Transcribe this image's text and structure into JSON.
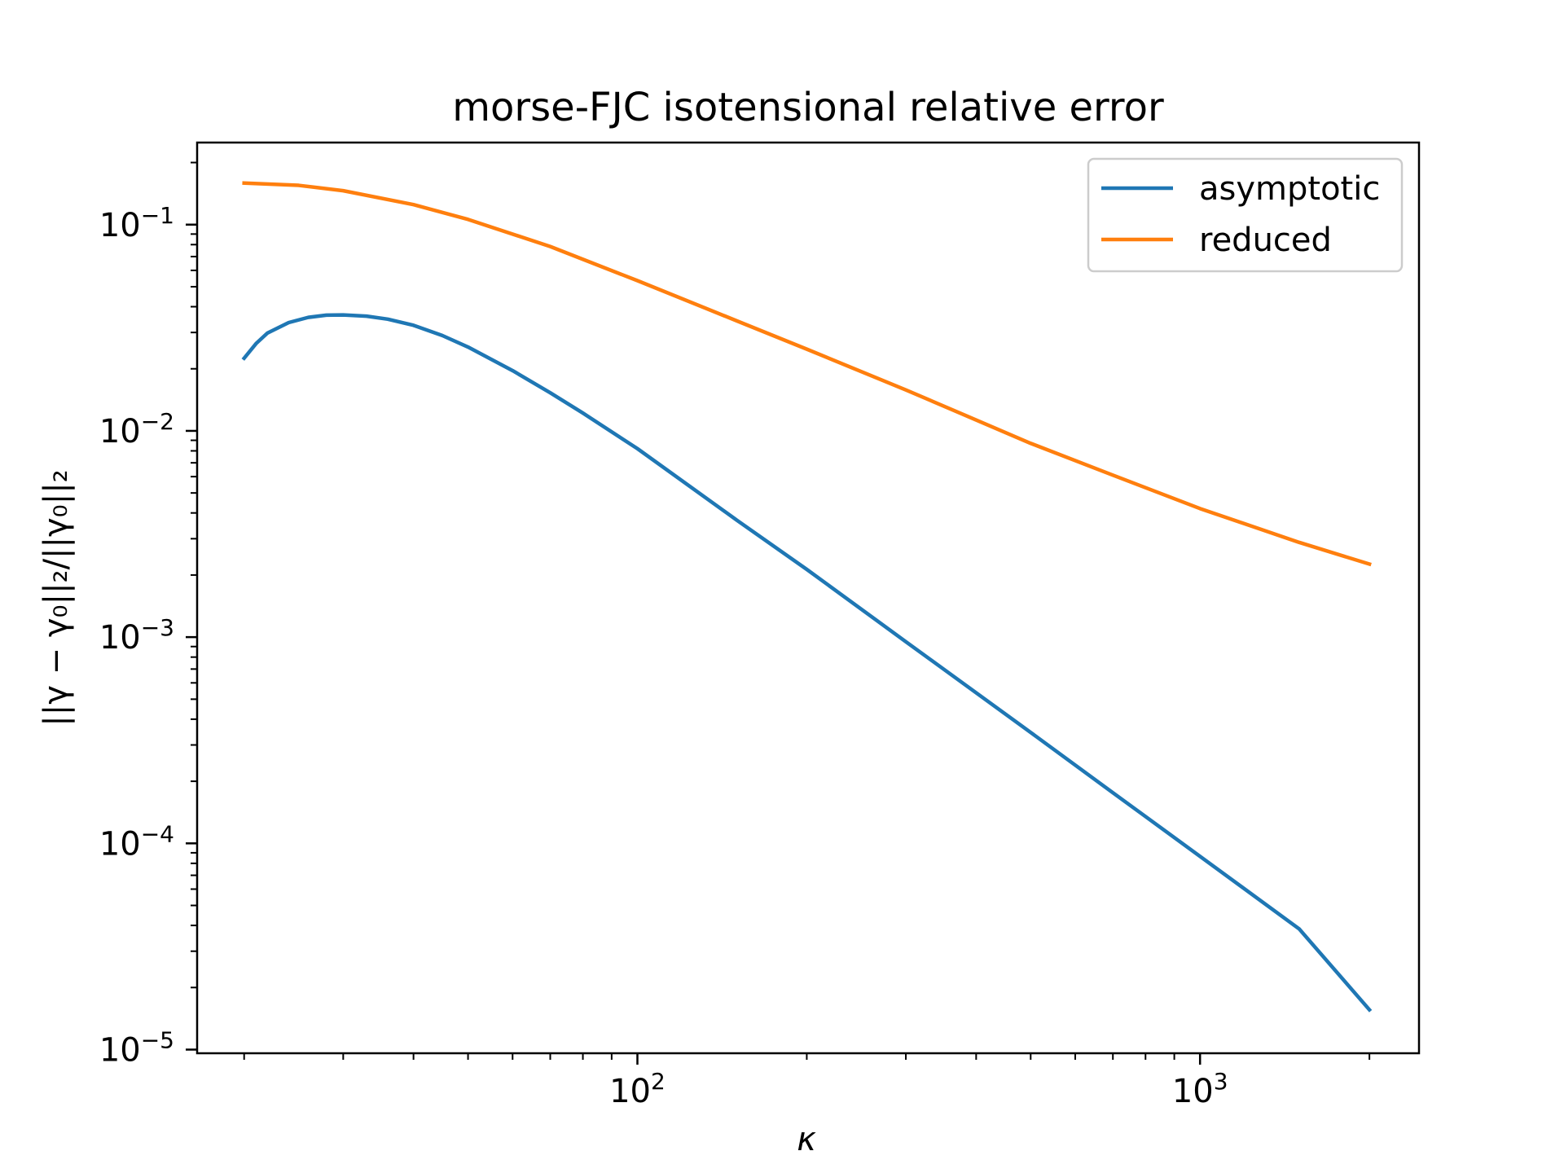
{
  "chart_data": {
    "type": "line",
    "title": "morse-FJC isotensional relative error",
    "xlabel": "κ",
    "ylabel": "||γ − γ₀||₂/||γ₀||₂",
    "xscale": "log",
    "yscale": "log",
    "xlim": [
      16.5,
      2450
    ],
    "ylim": [
      9.6e-06,
      0.25
    ],
    "xticks": [
      {
        "value": 100,
        "label": "10",
        "exp": "2"
      },
      {
        "value": 1000,
        "label": "10",
        "exp": "3"
      }
    ],
    "yticks": [
      {
        "value": 0.1,
        "label": "10",
        "exp": "−1"
      },
      {
        "value": 0.01,
        "label": "10",
        "exp": "−2"
      },
      {
        "value": 0.001,
        "label": "10",
        "exp": "−3"
      },
      {
        "value": 0.0001,
        "label": "10",
        "exp": "−4"
      },
      {
        "value": 1e-05,
        "label": "10",
        "exp": "−5"
      }
    ],
    "grid": false,
    "legend_position": "top-right",
    "series": [
      {
        "name": "asymptotic",
        "color": "#1f77b4",
        "x": [
          20,
          21,
          22,
          24,
          26,
          28,
          30,
          33,
          36,
          40,
          45,
          50,
          60,
          70,
          80,
          100,
          150,
          200,
          300,
          500,
          700,
          1000,
          1500,
          2000
        ],
        "y": [
          0.0225,
          0.0265,
          0.0298,
          0.0335,
          0.0355,
          0.0364,
          0.0365,
          0.036,
          0.0348,
          0.0325,
          0.029,
          0.0255,
          0.0196,
          0.0153,
          0.0122,
          0.0082,
          0.0037,
          0.00213,
          0.00095,
          0.000345,
          0.000176,
          8.65e-05,
          3.85e-05,
          1.56e-05
        ]
      },
      {
        "name": "reduced",
        "color": "#ff7f0e",
        "x": [
          20,
          25,
          30,
          40,
          50,
          70,
          100,
          150,
          200,
          300,
          500,
          700,
          1000,
          1500,
          2000
        ],
        "y": [
          0.159,
          0.155,
          0.146,
          0.125,
          0.106,
          0.0783,
          0.0535,
          0.0342,
          0.0249,
          0.0158,
          0.0087,
          0.0061,
          0.0042,
          0.00288,
          0.00226
        ]
      }
    ]
  }
}
